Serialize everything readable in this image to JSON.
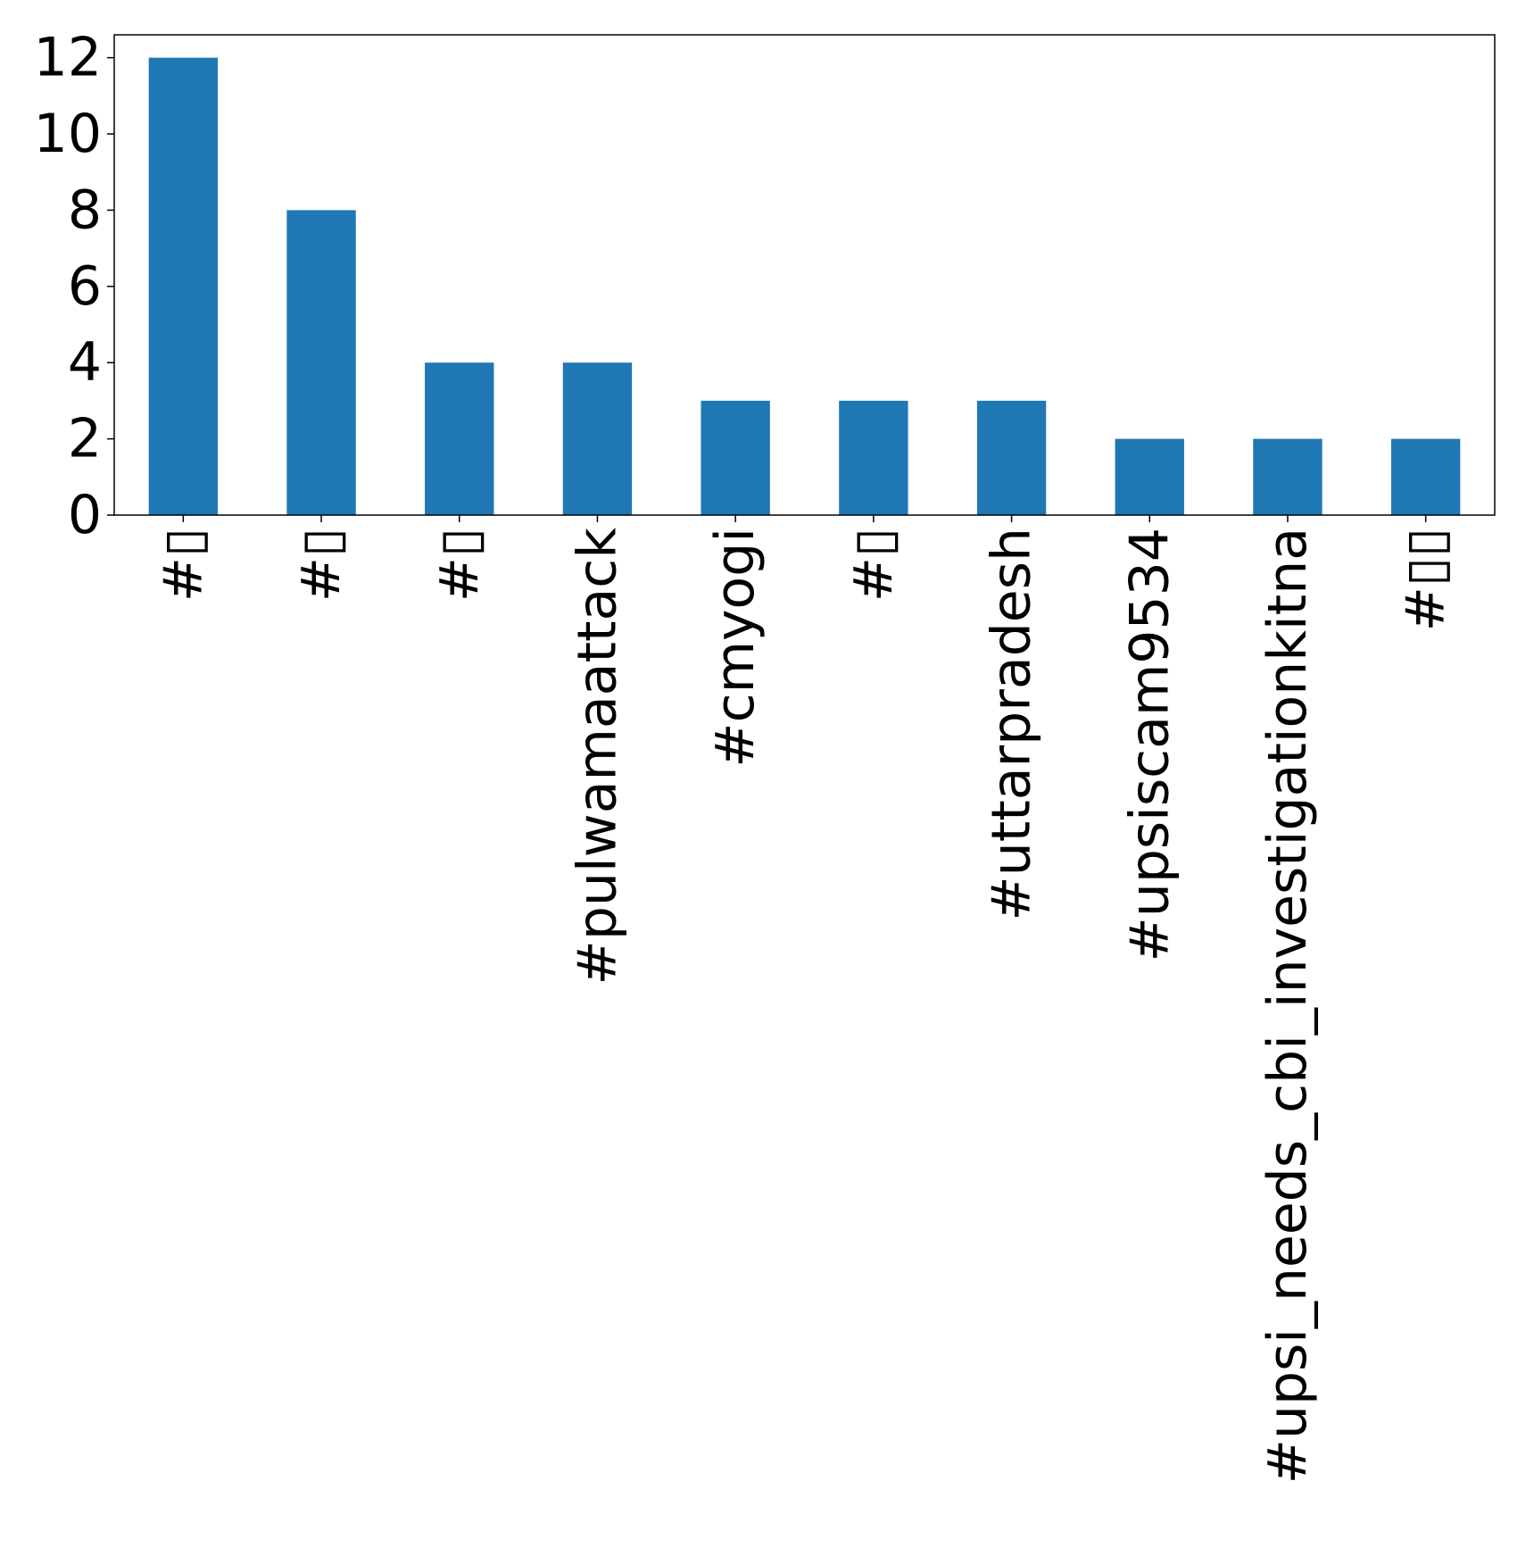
{
  "chart_data": {
    "type": "bar",
    "title": "",
    "xlabel": "",
    "ylabel": "",
    "categories": [
      "#▯",
      "#▯",
      "#▯",
      "#pulwamaattack",
      "#cmyogi",
      "#▯",
      "#uttarpradesh",
      "#upsiscam9534",
      "#upsi_needs_cbi_investigationkitna",
      "#▯▯"
    ],
    "values": [
      12,
      8,
      4,
      4,
      3,
      3,
      3,
      2,
      2,
      2
    ],
    "ylim": [
      0,
      12.6
    ],
    "yticks": [
      0,
      2,
      4,
      6,
      8,
      10,
      12
    ],
    "grid": false,
    "legend": "none",
    "colors": {
      "bar": "#1f77b4",
      "axis": "#000000",
      "background": "#ffffff"
    }
  }
}
